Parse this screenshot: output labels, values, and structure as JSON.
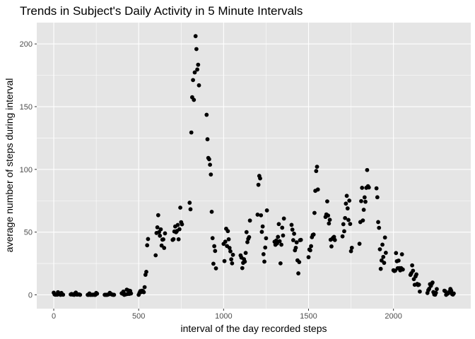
{
  "chart_data": {
    "type": "scatter",
    "title": "Trends in Subject's Daily Activity in 5 Minute Intervals",
    "xlabel": "interval of the day recorded steps",
    "ylabel": "average number of steps during interval",
    "xlim": [
      -100,
      2455
    ],
    "ylim": [
      -11,
      217
    ],
    "x_ticks": [
      0,
      500,
      1000,
      1500,
      2000
    ],
    "y_ticks": [
      0,
      50,
      100,
      150,
      200
    ],
    "x_tick_labels": [
      "0",
      "500",
      "1000",
      "1500",
      "2000"
    ],
    "y_tick_labels": [
      "0",
      "50",
      "100",
      "150",
      "200"
    ],
    "grid": true,
    "background": "#e5e5e5",
    "grid_color": "#ffffff",
    "point_color": "#000000",
    "points": [
      [
        0,
        1.7
      ],
      [
        5,
        0.3
      ],
      [
        10,
        0.1
      ],
      [
        15,
        0.2
      ],
      [
        20,
        0.1
      ],
      [
        25,
        2.1
      ],
      [
        30,
        0.5
      ],
      [
        35,
        0.9
      ],
      [
        40,
        0
      ],
      [
        45,
        1.5
      ],
      [
        50,
        0.3
      ],
      [
        55,
        0.1
      ],
      [
        100,
        0.3
      ],
      [
        105,
        0.7
      ],
      [
        110,
        0.2
      ],
      [
        115,
        0.3
      ],
      [
        120,
        0
      ],
      [
        125,
        1.1
      ],
      [
        130,
        1.8
      ],
      [
        135,
        0.2
      ],
      [
        140,
        0.2
      ],
      [
        145,
        0.4
      ],
      [
        150,
        0.3
      ],
      [
        155,
        0
      ],
      [
        200,
        0
      ],
      [
        205,
        0
      ],
      [
        210,
        1.1
      ],
      [
        215,
        0
      ],
      [
        220,
        0
      ],
      [
        225,
        0.1
      ],
      [
        230,
        0
      ],
      [
        235,
        0.2
      ],
      [
        240,
        0
      ],
      [
        245,
        0
      ],
      [
        250,
        1.5
      ],
      [
        255,
        0.9
      ],
      [
        300,
        0
      ],
      [
        305,
        0
      ],
      [
        310,
        0
      ],
      [
        315,
        0
      ],
      [
        320,
        0.2
      ],
      [
        325,
        0.6
      ],
      [
        330,
        1.6
      ],
      [
        335,
        0.6
      ],
      [
        340,
        0.5
      ],
      [
        345,
        0.1
      ],
      [
        350,
        0
      ],
      [
        355,
        0
      ],
      [
        400,
        1.2
      ],
      [
        405,
        0.9
      ],
      [
        410,
        2.6
      ],
      [
        415,
        0
      ],
      [
        420,
        0.3
      ],
      [
        425,
        0.4
      ],
      [
        430,
        4.1
      ],
      [
        435,
        0.7
      ],
      [
        440,
        3.5
      ],
      [
        445,
        0.8
      ],
      [
        450,
        3.1
      ],
      [
        455,
        1.1
      ],
      [
        500,
        0
      ],
      [
        505,
        1.6
      ],
      [
        510,
        3
      ],
      [
        515,
        2.2
      ],
      [
        520,
        3.3
      ],
      [
        525,
        2.96
      ],
      [
        530,
        2.1
      ],
      [
        535,
        6.1
      ],
      [
        540,
        16
      ],
      [
        545,
        18.3
      ],
      [
        550,
        39.5
      ],
      [
        555,
        44.5
      ],
      [
        600,
        31.5
      ],
      [
        605,
        49.3
      ],
      [
        610,
        53.8
      ],
      [
        615,
        63.5
      ],
      [
        620,
        50
      ],
      [
        625,
        47.1
      ],
      [
        630,
        52.2
      ],
      [
        635,
        39.3
      ],
      [
        640,
        44
      ],
      [
        645,
        44.2
      ],
      [
        650,
        37.4
      ],
      [
        655,
        49
      ],
      [
        700,
        43.8
      ],
      [
        705,
        44.4
      ],
      [
        710,
        50.5
      ],
      [
        715,
        54.5
      ],
      [
        720,
        49.9
      ],
      [
        725,
        50.9
      ],
      [
        730,
        55.7
      ],
      [
        735,
        44.3
      ],
      [
        740,
        52.3
      ],
      [
        745,
        69.5
      ],
      [
        750,
        57.9
      ],
      [
        755,
        56.2
      ],
      [
        800,
        73.4
      ],
      [
        805,
        68.2
      ],
      [
        810,
        129.4
      ],
      [
        815,
        157.5
      ],
      [
        820,
        171.2
      ],
      [
        825,
        155.4
      ],
      [
        830,
        177.3
      ],
      [
        835,
        206.2
      ],
      [
        840,
        195.9
      ],
      [
        845,
        179.6
      ],
      [
        850,
        183.4
      ],
      [
        855,
        167
      ],
      [
        900,
        143.5
      ],
      [
        905,
        124
      ],
      [
        910,
        109.1
      ],
      [
        915,
        108.1
      ],
      [
        920,
        103.7
      ],
      [
        925,
        95.9
      ],
      [
        930,
        66.2
      ],
      [
        935,
        45.2
      ],
      [
        940,
        24.8
      ],
      [
        945,
        38.8
      ],
      [
        950,
        35
      ],
      [
        955,
        21.1
      ],
      [
        1000,
        40.6
      ],
      [
        1005,
        26.9
      ],
      [
        1010,
        42.4
      ],
      [
        1015,
        52.7
      ],
      [
        1020,
        38.9
      ],
      [
        1025,
        50.8
      ],
      [
        1030,
        44.3
      ],
      [
        1035,
        37.4
      ],
      [
        1040,
        34.7
      ],
      [
        1045,
        28.3
      ],
      [
        1050,
        25.1
      ],
      [
        1055,
        31.9
      ],
      [
        1100,
        31.4
      ],
      [
        1105,
        29.7
      ],
      [
        1110,
        21.3
      ],
      [
        1115,
        25.5
      ],
      [
        1120,
        28.4
      ],
      [
        1125,
        26.5
      ],
      [
        1130,
        33.4
      ],
      [
        1135,
        49.98
      ],
      [
        1140,
        42
      ],
      [
        1145,
        44.6
      ],
      [
        1150,
        46
      ],
      [
        1155,
        59.2
      ],
      [
        1200,
        63.9
      ],
      [
        1205,
        87.7
      ],
      [
        1210,
        94.8
      ],
      [
        1215,
        92.8
      ],
      [
        1220,
        63.4
      ],
      [
        1225,
        50.2
      ],
      [
        1230,
        54.5
      ],
      [
        1235,
        32.4
      ],
      [
        1240,
        26.5
      ],
      [
        1245,
        37.7
      ],
      [
        1250,
        45.1
      ],
      [
        1255,
        67.3
      ],
      [
        1300,
        42.3
      ],
      [
        1305,
        39.9
      ],
      [
        1310,
        43.3
      ],
      [
        1315,
        40.98
      ],
      [
        1320,
        46.2
      ],
      [
        1325,
        56.4
      ],
      [
        1330,
        42.75
      ],
      [
        1335,
        25.1
      ],
      [
        1340,
        39.96
      ],
      [
        1345,
        53.5
      ],
      [
        1350,
        47.3
      ],
      [
        1355,
        60.8
      ],
      [
        1400,
        55.75
      ],
      [
        1405,
        51.96
      ],
      [
        1410,
        43.6
      ],
      [
        1415,
        48.7
      ],
      [
        1420,
        35.5
      ],
      [
        1425,
        37.5
      ],
      [
        1430,
        41.8
      ],
      [
        1435,
        27.5
      ],
      [
        1440,
        17.1
      ],
      [
        1445,
        26.1
      ],
      [
        1450,
        43.6
      ],
      [
        1455,
        43.8
      ],
      [
        1500,
        30
      ],
      [
        1505,
        36.1
      ],
      [
        1510,
        35.5
      ],
      [
        1515,
        38.8
      ],
      [
        1520,
        45.96
      ],
      [
        1525,
        47.75
      ],
      [
        1530,
        48.1
      ],
      [
        1535,
        65.3
      ],
      [
        1540,
        82.9
      ],
      [
        1545,
        98.7
      ],
      [
        1550,
        102.1
      ],
      [
        1555,
        83.96
      ],
      [
        1600,
        62.1
      ],
      [
        1605,
        64.1
      ],
      [
        1610,
        74.5
      ],
      [
        1615,
        63.2
      ],
      [
        1620,
        56.9
      ],
      [
        1625,
        59.8
      ],
      [
        1630,
        43.9
      ],
      [
        1635,
        38.6
      ],
      [
        1640,
        44.7
      ],
      [
        1645,
        45.5
      ],
      [
        1650,
        46.2
      ],
      [
        1655,
        43.7
      ],
      [
        1700,
        46.6
      ],
      [
        1705,
        56.3
      ],
      [
        1710,
        50.7
      ],
      [
        1715,
        61.2
      ],
      [
        1720,
        72.7
      ],
      [
        1725,
        78.9
      ],
      [
        1730,
        68.9
      ],
      [
        1735,
        59.7
      ],
      [
        1740,
        75.1
      ],
      [
        1745,
        56.5
      ],
      [
        1750,
        34.8
      ],
      [
        1755,
        37.5
      ],
      [
        1800,
        40.7
      ],
      [
        1805,
        58
      ],
      [
        1810,
        74.7
      ],
      [
        1815,
        85.3
      ],
      [
        1820,
        59.3
      ],
      [
        1825,
        67.8
      ],
      [
        1830,
        77.7
      ],
      [
        1835,
        74.2
      ],
      [
        1840,
        85.3
      ],
      [
        1845,
        99.5
      ],
      [
        1850,
        86.6
      ],
      [
        1855,
        85.6
      ],
      [
        1900,
        84.9
      ],
      [
        1905,
        77.8
      ],
      [
        1910,
        58
      ],
      [
        1915,
        53.4
      ],
      [
        1920,
        36.3
      ],
      [
        1925,
        20.7
      ],
      [
        1930,
        27.4
      ],
      [
        1935,
        40
      ],
      [
        1940,
        30.2
      ],
      [
        1945,
        25.5
      ],
      [
        1950,
        45.7
      ],
      [
        1955,
        33.5
      ],
      [
        2000,
        19.6
      ],
      [
        2005,
        19
      ],
      [
        2010,
        19.3
      ],
      [
        2015,
        33.3
      ],
      [
        2020,
        26.8
      ],
      [
        2025,
        21.2
      ],
      [
        2030,
        27.3
      ],
      [
        2035,
        21.3
      ],
      [
        2040,
        19.5
      ],
      [
        2045,
        21.3
      ],
      [
        2050,
        32.3
      ],
      [
        2055,
        20.2
      ],
      [
        2100,
        15.9
      ],
      [
        2105,
        17.2
      ],
      [
        2110,
        23.5
      ],
      [
        2115,
        19.2
      ],
      [
        2120,
        12.5
      ],
      [
        2125,
        8
      ],
      [
        2130,
        14.7
      ],
      [
        2135,
        16.3
      ],
      [
        2140,
        8.7
      ],
      [
        2145,
        7.8
      ],
      [
        2150,
        8.1
      ],
      [
        2155,
        2.6
      ],
      [
        2200,
        1.5
      ],
      [
        2205,
        3.7
      ],
      [
        2210,
        4.8
      ],
      [
        2215,
        8.5
      ],
      [
        2220,
        7.1
      ],
      [
        2225,
        8.7
      ],
      [
        2230,
        9.8
      ],
      [
        2235,
        2.2
      ],
      [
        2240,
        0.3
      ],
      [
        2245,
        0.1
      ],
      [
        2250,
        1.6
      ],
      [
        2255,
        4.6
      ],
      [
        2300,
        3.3
      ],
      [
        2305,
        2.8
      ],
      [
        2310,
        0
      ],
      [
        2315,
        0.8
      ],
      [
        2320,
        1
      ],
      [
        2325,
        1.6
      ],
      [
        2330,
        2.6
      ],
      [
        2335,
        4.7
      ],
      [
        2340,
        3.3
      ],
      [
        2345,
        0.6
      ],
      [
        2350,
        0.2
      ],
      [
        2355,
        1.1
      ]
    ]
  }
}
